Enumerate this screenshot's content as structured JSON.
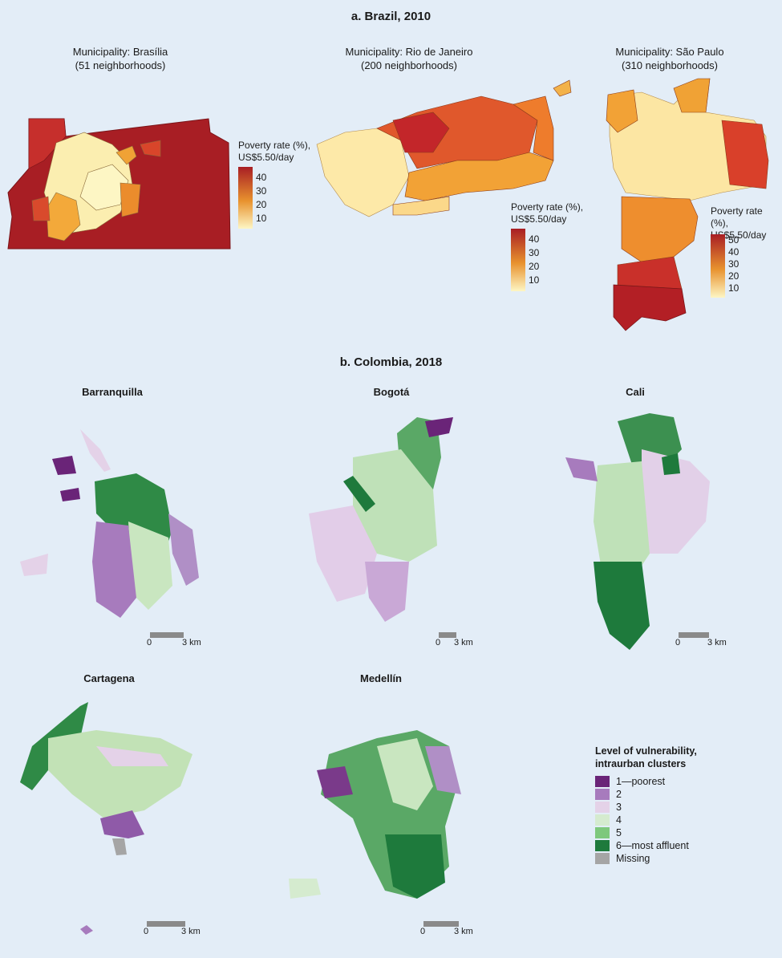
{
  "panel_a": {
    "title": "a. Brazil, 2010",
    "maps": [
      {
        "municipality": "Municipality: Brasília",
        "neighborhoods": "(51 neighborhoods)"
      },
      {
        "municipality": "Municipality: Rio de Janeiro",
        "neighborhoods": "(200 neighborhoods)"
      },
      {
        "municipality": "Municipality: São Paulo",
        "neighborhoods": "(310 neighborhoods)"
      }
    ],
    "legends": [
      {
        "line1": "Poverty rate (%),",
        "line2": "US$5.50/day",
        "ticks": [
          "40",
          "30",
          "20",
          "10"
        ]
      },
      {
        "line1": "Poverty rate (%),",
        "line2": "US$5.50/day",
        "ticks": [
          "40",
          "30",
          "20",
          "10"
        ]
      },
      {
        "line1": "Poverty rate (%),",
        "line2": "US$5.50/day",
        "ticks": [
          "50",
          "40",
          "30",
          "20",
          "10"
        ]
      }
    ],
    "colors": {
      "high": "#a81e24",
      "mid": "#e8922e",
      "low": "#fdf6c4"
    }
  },
  "panel_b": {
    "title": "b. Colombia, 2018",
    "cities": [
      "Barranquilla",
      "Bogotá",
      "Cali",
      "Cartagena",
      "Medellín"
    ],
    "scale": {
      "zero": "0",
      "distance": "3 km"
    },
    "legend": {
      "title_line1": "Level of vulnerability,",
      "title_line2": "intraurban clusters",
      "items": [
        {
          "label": "1—poorest",
          "color": "#6a2478"
        },
        {
          "label": "2",
          "color": "#a77bbd"
        },
        {
          "label": "3",
          "color": "#e4d2e8"
        },
        {
          "label": "4",
          "color": "#d5ebcf"
        },
        {
          "label": "5",
          "color": "#7ec87c"
        },
        {
          "label": "6—most affluent",
          "color": "#1e7a3c"
        },
        {
          "label": "Missing",
          "color": "#a5a5a5"
        }
      ]
    }
  }
}
